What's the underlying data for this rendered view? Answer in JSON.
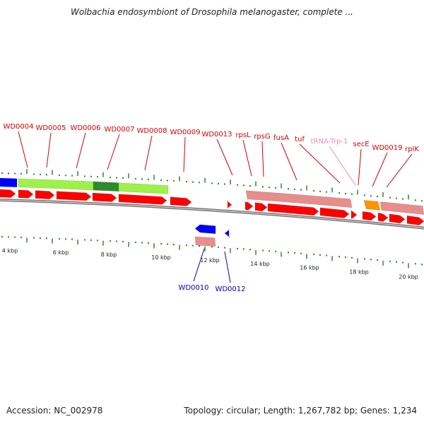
{
  "title": "Wolbachia endosymbiont of Drosophila melanogaster, complete ...",
  "accession": "Accession: NC_002978",
  "summary": "Topology: circular; Length: 1,267,782 bp; Genes: 1,234",
  "colors": {
    "forward_label": "#d80000",
    "reverse_label": "#0000c8",
    "trna_label": "#f08cb4",
    "gene_arrow": "#ff0000",
    "reverse_arrow": "#0000ff",
    "pink_feature": "#e88c8c",
    "green_feature": "#9ef04a",
    "dark_green_feature": "#2f8a2f",
    "orange_feature": "#ff9400",
    "tick": "#2b8a2b",
    "backbone": "#777777"
  },
  "scale_labels": [
    "4 kbp",
    "6 kbp",
    "8 kbp",
    "10 kbp",
    "12 kbp",
    "14 kbp",
    "16 kbp",
    "18 kbp",
    "20 kbp"
  ],
  "genes_forward": [
    "WD0004",
    "WD0005",
    "WD0006",
    "WD0007",
    "WD0008",
    "WD0009",
    "WD0013",
    "rpsL",
    "rpsG",
    "fusA",
    "tuf",
    "tRNA-Trp-1",
    "secE",
    "WD0019",
    "rplK"
  ],
  "genes_reverse": [
    "WD0010",
    "WD0012"
  ]
}
